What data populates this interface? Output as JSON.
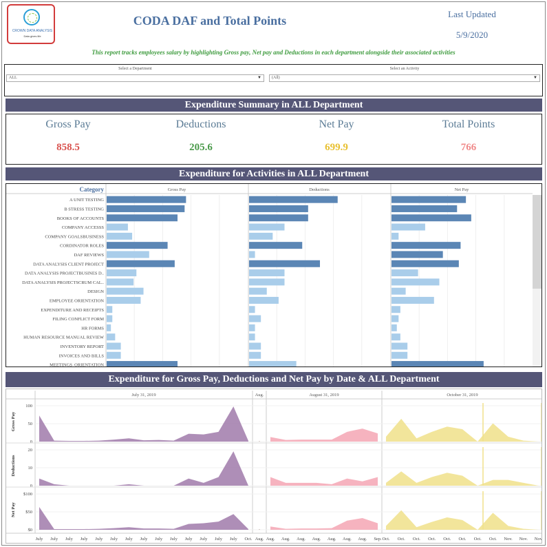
{
  "header": {
    "logo_name": "CROWN DATA ANALYSIS",
    "logo_tagline": "Data gives life",
    "title": "CODA DAF and Total Points",
    "last_updated_label": "Last Updated",
    "last_updated_date": "5/9/2020",
    "subtitle": "This report tracks employees salary by highlighting Gross pay, Net pay and Deductions in each department alongside their associated activities"
  },
  "filters": {
    "department": {
      "label": "Select a Department",
      "value": "ALL"
    },
    "activity": {
      "label": "Select an Activity",
      "value": "(All)"
    }
  },
  "summary": {
    "title": "Expenditure Summary in ALL Department",
    "kpis": [
      {
        "label": "Gross Pay",
        "value": "858.5",
        "color": "#d9534f"
      },
      {
        "label": "Deductions",
        "value": "205.6",
        "color": "#4a9a4a"
      },
      {
        "label": "Net Pay",
        "value": "699.9",
        "color": "#e8c030"
      },
      {
        "label": "Total Points",
        "value": "766",
        "color": "#f08a8a"
      }
    ]
  },
  "activities_section": {
    "title": "Expenditure for Activities in ALL Department"
  },
  "timeline_section": {
    "title": "Expenditure for Gross Pay, Deductions and Net Pay  by Date & ALL Department"
  },
  "chart_data": [
    {
      "type": "bar",
      "orientation": "horizontal",
      "category_header": "Category",
      "categories": [
        "A UNIT TESTING",
        "B STRESS TESTING",
        "BOOKS OF ACCOUNTS",
        "COMPANY ACCESSS",
        "COMPANY GOALSBUSINESS",
        "CORDINATOR ROLES",
        "DAF REVIEWS",
        "DATA ANALYSIS CLIENT PROJECT",
        "DATA ANALYSIS PROJECTBUSINES D..",
        "DATA ANALYSIS PROJECTSCRUM CAL..",
        "DESIGN",
        "EMPLOYEE ORIENTATION",
        "EXPENDITURE AND RECEIPTS",
        "FILING CONFLICT FORM",
        "HR FORMS",
        "HUMAN RESOURCE MANUAL REVIEW",
        "INVENTORY REPORT",
        "INVOICES AND BILLS",
        "MEETINGS_ORIENTATION"
      ],
      "series": [
        {
          "name": "Gross Pay",
          "values": [
            56,
            55,
            50,
            15,
            18,
            43,
            30,
            48,
            21,
            19,
            26,
            24,
            4,
            4,
            3,
            6,
            10,
            10,
            50
          ],
          "xlim": [
            0,
            100
          ]
        },
        {
          "name": "Deductions",
          "values": [
            15,
            10,
            10,
            6,
            4,
            9,
            1,
            12,
            6,
            6,
            3,
            5,
            1,
            2,
            1,
            1,
            2,
            2,
            8
          ],
          "xlim": [
            0,
            24
          ]
        },
        {
          "name": "Net Pay",
          "values": [
            42,
            37,
            45,
            19,
            4,
            39,
            29,
            38,
            15,
            27,
            8,
            24,
            5,
            4,
            3,
            5,
            9,
            9,
            52
          ],
          "xlim": [
            0,
            80
          ]
        }
      ]
    },
    {
      "type": "area",
      "rows": [
        "Gross Pay",
        "Deductions",
        "Net Pay"
      ],
      "y_ticks": {
        "Gross Pay": [
          "100",
          "50",
          "0"
        ],
        "Deductions": [
          "20",
          "10",
          "0"
        ],
        "Net Pay": [
          "$100",
          "$50",
          "$0"
        ]
      },
      "panel_headers": [
        "July 31, 2019",
        "Aug.",
        "August 31, 2019",
        "October 31, 2019"
      ],
      "x_labels": [
        [
          "July",
          "July",
          "July",
          "July",
          "July",
          "July",
          "July",
          "July",
          "July",
          "July",
          "July",
          "July",
          "July",
          "July",
          "Oct."
        ],
        [
          "Aug."
        ],
        [
          "Aug.",
          "Aug.",
          "Aug.",
          "Aug.",
          "Aug.",
          "Aug.",
          "Aug.",
          "Sep."
        ],
        [
          "Oct.",
          "Oct.",
          "Oct.",
          "Oct.",
          "Oct.",
          "Oct.",
          "Oct.",
          "Oct.",
          "Nov.",
          "Nov.",
          "Nov."
        ]
      ],
      "colors": [
        "#a07aaa",
        "#a88a80",
        "#f4a6b4",
        "#f0e08a"
      ],
      "series": [
        {
          "name": "Gross Pay",
          "panels": [
            [
              80,
              3,
              2,
              2,
              3,
              6,
              10,
              4,
              5,
              3,
              24,
              22,
              30,
              108,
              2
            ],
            [
              1
            ],
            [
              14,
              5,
              6,
              6,
              6,
              30,
              40,
              25
            ],
            [
              15,
              70,
              10,
              30,
              46,
              38,
              0,
              56,
              15,
              3,
              0
            ]
          ]
        },
        {
          "name": "Deductions",
          "panels": [
            [
              5,
              1,
              0,
              0,
              0,
              0,
              1,
              0,
              0,
              0,
              5,
              2,
              6,
              24,
              0
            ],
            [
              0
            ],
            [
              6,
              2,
              2,
              2,
              1,
              5,
              3,
              6
            ],
            [
              2,
              10,
              2,
              6,
              9,
              7,
              0,
              4,
              4,
              2,
              0
            ]
          ]
        },
        {
          "name": "Net Pay",
          "panels": [
            [
              70,
              2,
              2,
              2,
              3,
              5,
              8,
              4,
              4,
              3,
              18,
              20,
              25,
              48,
              2
            ],
            [
              1
            ],
            [
              10,
              3,
              4,
              4,
              5,
              28,
              36,
              20
            ],
            [
              12,
              60,
              8,
              24,
              38,
              30,
              0,
              52,
              12,
              3,
              0
            ]
          ]
        }
      ]
    }
  ]
}
